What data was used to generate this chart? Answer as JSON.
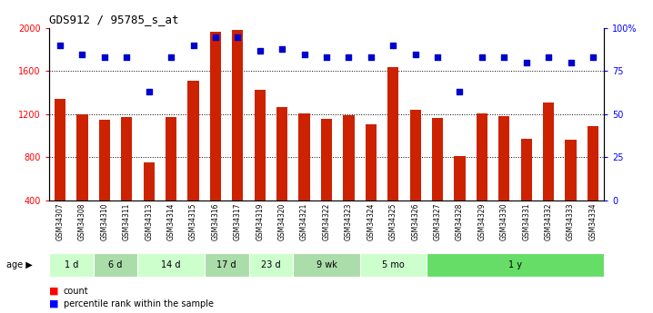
{
  "title": "GDS912 / 95785_s_at",
  "samples": [
    "GSM34307",
    "GSM34308",
    "GSM34310",
    "GSM34311",
    "GSM34313",
    "GSM34314",
    "GSM34315",
    "GSM34316",
    "GSM34317",
    "GSM34319",
    "GSM34320",
    "GSM34321",
    "GSM34322",
    "GSM34323",
    "GSM34324",
    "GSM34325",
    "GSM34326",
    "GSM34327",
    "GSM34328",
    "GSM34329",
    "GSM34330",
    "GSM34331",
    "GSM34332",
    "GSM34333",
    "GSM34334"
  ],
  "counts": [
    1340,
    1200,
    1150,
    1175,
    755,
    1170,
    1510,
    1970,
    1980,
    1430,
    1265,
    1205,
    1155,
    1190,
    1110,
    1640,
    1240,
    1165,
    810,
    1210,
    1185,
    970,
    1305,
    960,
    1090
  ],
  "percentiles": [
    90,
    85,
    83,
    83,
    63,
    83,
    90,
    95,
    95,
    87,
    88,
    85,
    83,
    83,
    83,
    90,
    85,
    83,
    63,
    83,
    83,
    80,
    83,
    80,
    83
  ],
  "age_groups": [
    {
      "label": "1 d",
      "start": 0,
      "end": 2,
      "color": "#ccffcc"
    },
    {
      "label": "6 d",
      "start": 2,
      "end": 4,
      "color": "#aaddaa"
    },
    {
      "label": "14 d",
      "start": 4,
      "end": 7,
      "color": "#ccffcc"
    },
    {
      "label": "17 d",
      "start": 7,
      "end": 9,
      "color": "#aaddaa"
    },
    {
      "label": "23 d",
      "start": 9,
      "end": 11,
      "color": "#ccffcc"
    },
    {
      "label": "9 wk",
      "start": 11,
      "end": 14,
      "color": "#aaddaa"
    },
    {
      "label": "5 mo",
      "start": 14,
      "end": 17,
      "color": "#ccffcc"
    },
    {
      "label": "1 y",
      "start": 17,
      "end": 25,
      "color": "#66dd66"
    }
  ],
  "bar_color": "#cc2200",
  "dot_color": "#0000cc",
  "ylim_left": [
    400,
    2000
  ],
  "ylim_right": [
    0,
    100
  ],
  "yticks_left": [
    400,
    800,
    1200,
    1600,
    2000
  ],
  "yticks_right": [
    0,
    25,
    50,
    75,
    100
  ],
  "grid_values": [
    800,
    1200,
    1600
  ],
  "background_color": "#ffffff",
  "plot_bg": "#ffffff",
  "tick_bg": "#cccccc"
}
